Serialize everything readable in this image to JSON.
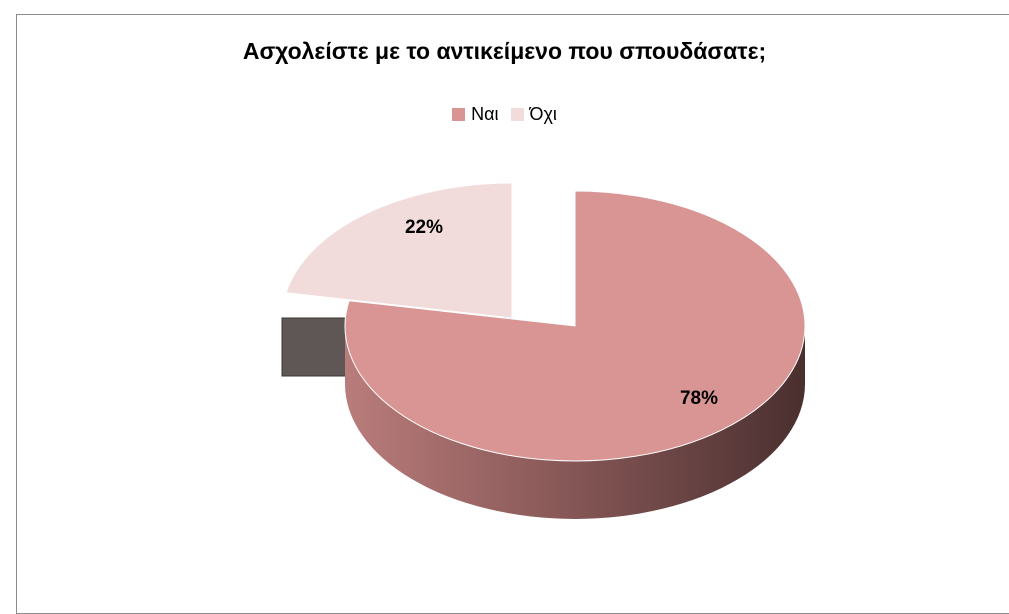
{
  "chart_data": {
    "type": "pie",
    "title": "Ασχολείστε με το αντικείμενο που σπουδάσατε;",
    "slices": [
      {
        "label": "Ναι",
        "value": 78,
        "display": "78%",
        "color": "#d99594"
      },
      {
        "label": "Όχι",
        "value": 22,
        "display": "22%",
        "color": "#f2dcdb"
      }
    ],
    "legend_position": "top",
    "style": "3d-exploded"
  }
}
